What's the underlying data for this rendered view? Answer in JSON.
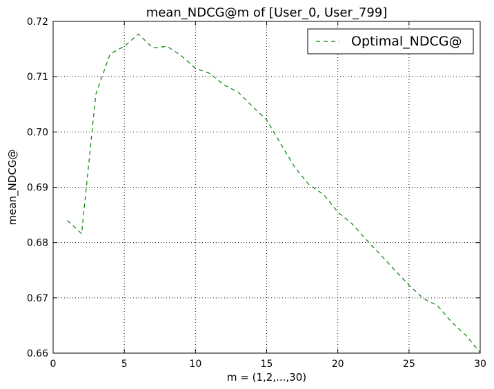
{
  "chart_data": {
    "type": "line",
    "title": "mean_NDCG@m of [User_0, User_799]",
    "xlabel": "m = (1,2,...,30)",
    "ylabel": "mean_NDCG@",
    "xlim": [
      0,
      30
    ],
    "ylim": [
      0.66,
      0.72
    ],
    "xticks": [
      0,
      5,
      10,
      15,
      20,
      25,
      30
    ],
    "xtick_labels": [
      "0",
      "5",
      "10",
      "15",
      "20",
      "25",
      "30"
    ],
    "yticks": [
      0.66,
      0.67,
      0.68,
      0.69,
      0.7,
      0.71,
      0.72
    ],
    "ytick_labels": [
      "0.66",
      "0.67",
      "0.68",
      "0.69",
      "0.70",
      "0.71",
      "0.72"
    ],
    "grid": true,
    "legend_position": "top-right",
    "x": [
      1,
      2,
      3,
      4,
      5,
      6,
      7,
      8,
      9,
      10,
      11,
      12,
      13,
      14,
      15,
      16,
      17,
      18,
      19,
      20,
      21,
      22,
      23,
      24,
      25,
      26,
      27,
      28,
      29,
      30
    ],
    "series": [
      {
        "name": "Optimal_NDCG@",
        "color": "#008000",
        "line_style": "dashed",
        "values": [
          0.684,
          0.6816,
          0.7068,
          0.7141,
          0.7155,
          0.7177,
          0.7152,
          0.7155,
          0.7138,
          0.7115,
          0.7106,
          0.7085,
          0.7072,
          0.7046,
          0.7022,
          0.6978,
          0.6935,
          0.6904,
          0.6887,
          0.6855,
          0.6834,
          0.6805,
          0.6778,
          0.675,
          0.6723,
          0.6699,
          0.6686,
          0.6656,
          0.6632,
          0.6601
        ]
      }
    ]
  }
}
